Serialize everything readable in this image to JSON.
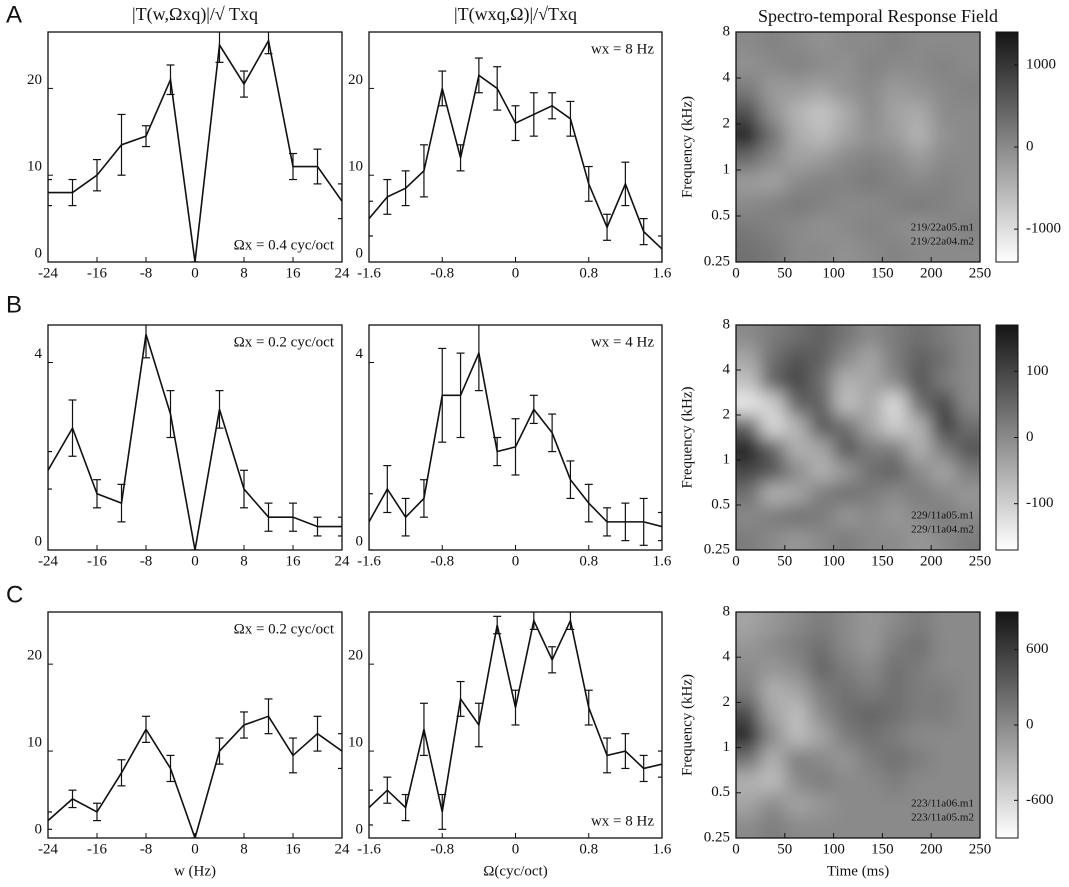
{
  "panel_labels": [
    "A",
    "B",
    "C"
  ],
  "chart_data": [
    {
      "type": "line",
      "title": "|T(w,Ωxq)|/√ Txq",
      "annotation": "Ωx = 0.4 cyc/oct",
      "annotation_corner": "lower right",
      "color": "#111111",
      "x": [
        -24,
        -20,
        -16,
        -12,
        -8,
        -4,
        0,
        4,
        8,
        12,
        16,
        20,
        24
      ],
      "values": [
        8,
        8,
        10,
        13.5,
        14.5,
        21,
        0,
        25,
        20.5,
        25.5,
        11,
        11,
        7
      ],
      "errors": [
        1.5,
        1.5,
        1.8,
        3.5,
        1.2,
        1.7,
        0,
        2,
        1.5,
        1.5,
        1.5,
        2,
        2
      ],
      "xlim": [
        -24,
        24
      ],
      "xticks": [
        -24,
        -16,
        -8,
        0,
        8,
        16,
        24
      ],
      "ylim": [
        0,
        26.5
      ],
      "yticks": [
        0,
        10,
        20
      ]
    },
    {
      "type": "line",
      "title": "|T(wxq,Ω)|/√Txq",
      "annotation": "wx = 8 Hz",
      "annotation_corner": "upper right",
      "color": "#111111",
      "x": [
        -1.6,
        -1.4,
        -1.2,
        -1.0,
        -0.8,
        -0.6,
        -0.4,
        -0.2,
        0,
        0.2,
        0.4,
        0.6,
        0.8,
        1.0,
        1.2,
        1.4,
        1.6
      ],
      "values": [
        5,
        7.5,
        8.5,
        10.5,
        20,
        12,
        21.5,
        20,
        16,
        17,
        18,
        16.5,
        9,
        4,
        9,
        3.5,
        1.5
      ],
      "errors": [
        2,
        2,
        2,
        3,
        2,
        1.5,
        2,
        2.5,
        2,
        2.5,
        1.5,
        2,
        2,
        1.5,
        2.5,
        1.5,
        1.5
      ],
      "xlim": [
        -1.6,
        1.6
      ],
      "xticks": [
        -1.6,
        -0.8,
        0,
        0.8,
        1.6
      ],
      "ylim": [
        0,
        26.5
      ],
      "yticks": [
        0,
        10,
        20
      ]
    },
    {
      "type": "heatmap",
      "title": "Spectro-temporal Response Field",
      "ylabel": "Frequency (kHz)",
      "annotation": [
        "219/22a05.m1",
        "219/22a04.m2"
      ],
      "xlim": [
        0,
        250
      ],
      "xticks": [
        0,
        50,
        100,
        150,
        200,
        250
      ],
      "ylim": [
        0.25,
        8
      ],
      "yticks": [
        0.25,
        0.5,
        1,
        2,
        4,
        8
      ],
      "ylog": true,
      "zlim": [
        -1400,
        1400
      ],
      "zticks": [
        1000,
        0,
        -1000
      ],
      "colormap": [
        "#ffffff",
        "#151515"
      ],
      "z": [
        [
          0,
          100,
          0,
          -100,
          0,
          0,
          100,
          0,
          0,
          0
        ],
        [
          -100,
          0,
          100,
          0,
          -100,
          100,
          0,
          0,
          100,
          0
        ],
        [
          200,
          -200,
          -200,
          -300,
          -100,
          0,
          -200,
          -100,
          0,
          100
        ],
        [
          700,
          -100,
          -500,
          -700,
          -400,
          0,
          -300,
          -400,
          0,
          0
        ],
        [
          1300,
          300,
          -400,
          -600,
          -300,
          -100,
          -200,
          -500,
          -100,
          0
        ],
        [
          400,
          0,
          -300,
          -200,
          0,
          100,
          0,
          -200,
          0,
          0
        ],
        [
          -200,
          -300,
          0,
          100,
          100,
          200,
          100,
          0,
          100,
          0
        ],
        [
          0,
          100,
          200,
          100,
          0,
          0,
          100,
          200,
          100,
          0
        ],
        [
          200,
          100,
          0,
          -100,
          0,
          100,
          0,
          -100,
          0,
          100
        ],
        [
          300,
          200,
          0,
          0,
          -100,
          0,
          100,
          0,
          0,
          0
        ]
      ]
    },
    {
      "type": "line",
      "annotation": "Ωx = 0.2 cyc/oct",
      "annotation_corner": "upper right",
      "color": "#111111",
      "x": [
        -24,
        -20,
        -16,
        -12,
        -8,
        -4,
        0,
        4,
        8,
        12,
        16,
        20,
        24
      ],
      "values": [
        1.7,
        2.6,
        1.2,
        1.0,
        4.6,
        2.9,
        0,
        3.0,
        1.3,
        0.7,
        0.7,
        0.5,
        0.5
      ],
      "errors": [
        0.4,
        0.6,
        0.3,
        0.4,
        0.5,
        0.5,
        0,
        0.4,
        0.4,
        0.3,
        0.3,
        0.2,
        0.2
      ],
      "xlim": [
        -24,
        24
      ],
      "xticks": [
        -24,
        -16,
        -8,
        0,
        8,
        16,
        24
      ],
      "ylim": [
        0,
        4.8
      ],
      "yticks": [
        0,
        4
      ]
    },
    {
      "type": "line",
      "annotation": "wx = 4 Hz",
      "annotation_corner": "upper right",
      "color": "#111111",
      "x": [
        -1.6,
        -1.4,
        -1.2,
        -1.0,
        -0.8,
        -0.6,
        -0.4,
        -0.2,
        0,
        0.2,
        0.4,
        0.6,
        0.8,
        1.0,
        1.2,
        1.4,
        1.6
      ],
      "values": [
        0.6,
        1.3,
        0.7,
        1.1,
        3.3,
        3.3,
        4.2,
        2.1,
        2.2,
        3.0,
        2.5,
        1.5,
        1.0,
        0.6,
        0.6,
        0.6,
        0.5
      ],
      "errors": [
        0.6,
        0.5,
        0.4,
        0.4,
        1.0,
        0.9,
        0.8,
        0.3,
        0.6,
        0.3,
        0.4,
        0.4,
        0.4,
        0.3,
        0.4,
        0.5,
        0.3
      ],
      "xlim": [
        -1.6,
        1.6
      ],
      "xticks": [
        -1.6,
        -0.8,
        0,
        0.8,
        1.6
      ],
      "ylim": [
        0,
        4.8
      ],
      "yticks": [
        0,
        4
      ]
    },
    {
      "type": "heatmap",
      "ylabel": "Frequency (kHz)",
      "annotation": [
        "229/11a05.m1",
        "229/11a04.m2"
      ],
      "xlim": [
        0,
        250
      ],
      "xticks": [
        0,
        50,
        100,
        150,
        200,
        250
      ],
      "ylim": [
        0.25,
        8
      ],
      "yticks": [
        0.25,
        0.5,
        1,
        2,
        4,
        8
      ],
      "ylog": true,
      "zlim": [
        -170,
        170
      ],
      "zticks": [
        100,
        0,
        -100
      ],
      "colormap": [
        "#ffffff",
        "#151515"
      ],
      "z": [
        [
          0,
          20,
          40,
          60,
          30,
          0,
          20,
          40,
          20,
          0
        ],
        [
          -40,
          40,
          80,
          60,
          0,
          -40,
          20,
          60,
          40,
          0
        ],
        [
          -80,
          60,
          100,
          40,
          -60,
          -40,
          0,
          80,
          20,
          0
        ],
        [
          -140,
          -100,
          60,
          60,
          -80,
          -40,
          -120,
          40,
          100,
          0
        ],
        [
          60,
          -120,
          -60,
          80,
          40,
          -40,
          -100,
          -60,
          120,
          40
        ],
        [
          160,
          60,
          -60,
          -40,
          80,
          20,
          20,
          -60,
          20,
          80
        ],
        [
          100,
          80,
          0,
          -60,
          -20,
          40,
          60,
          0,
          -40,
          20
        ],
        [
          40,
          -60,
          -40,
          20,
          40,
          20,
          0,
          20,
          0,
          -20
        ],
        [
          0,
          20,
          40,
          20,
          -20,
          0,
          -20,
          0,
          20,
          0
        ],
        [
          20,
          0,
          -20,
          0,
          20,
          0,
          0,
          -20,
          0,
          20
        ]
      ]
    },
    {
      "type": "line",
      "xlabel": "w (Hz)",
      "annotation": "Ωx = 0.2 cyc/oct",
      "annotation_corner": "upper right",
      "color": "#111111",
      "x": [
        -24,
        -20,
        -16,
        -12,
        -8,
        -4,
        0,
        4,
        8,
        12,
        16,
        20,
        24
      ],
      "values": [
        2,
        4.5,
        3,
        7.5,
        12.5,
        8,
        0,
        10,
        13,
        14,
        9.5,
        12,
        10
      ],
      "errors": [
        1,
        1,
        1,
        1.5,
        1.5,
        1.5,
        0,
        1.5,
        1.5,
        2,
        2,
        2,
        2
      ],
      "xlim": [
        -24,
        24
      ],
      "xticks": [
        -24,
        -16,
        -8,
        0,
        8,
        16,
        24
      ],
      "ylim": [
        0,
        26
      ],
      "yticks": [
        0,
        10,
        20
      ]
    },
    {
      "type": "line",
      "xlabel": "Ω(cyc/oct)",
      "annotation": "wx = 8 Hz",
      "annotation_corner": "lower right",
      "color": "#111111",
      "x": [
        -1.6,
        -1.4,
        -1.2,
        -1.0,
        -0.8,
        -0.6,
        -0.4,
        -0.2,
        0,
        0.2,
        0.4,
        0.6,
        0.8,
        1.0,
        1.2,
        1.4,
        1.6
      ],
      "values": [
        3.5,
        5.5,
        3.5,
        12.5,
        3,
        16,
        13,
        24.5,
        15,
        25,
        20.5,
        25,
        15,
        9.5,
        10,
        8,
        8.5
      ],
      "errors": [
        2,
        1.5,
        1.5,
        3,
        2,
        2,
        2.5,
        1,
        2,
        1,
        1.5,
        1,
        2,
        2,
        2,
        1.5,
        1.5
      ],
      "xlim": [
        -1.6,
        1.6
      ],
      "xticks": [
        -1.6,
        -0.8,
        0,
        0.8,
        1.6
      ],
      "ylim": [
        0,
        26
      ],
      "yticks": [
        0,
        10,
        20
      ]
    },
    {
      "type": "heatmap",
      "xlabel": "Time (ms)",
      "ylabel": "Frequency (kHz)",
      "annotation": [
        "223/11a06.m1",
        "223/11a05.m2"
      ],
      "xlim": [
        0,
        250
      ],
      "xticks": [
        0,
        50,
        100,
        150,
        200,
        250
      ],
      "ylim": [
        0.25,
        8
      ],
      "yticks": [
        0.25,
        0.5,
        1,
        2,
        4,
        8
      ],
      "ylog": true,
      "zlim": [
        -900,
        900
      ],
      "zticks": [
        600,
        0,
        -600
      ],
      "colormap": [
        "#ffffff",
        "#151515"
      ],
      "z": [
        [
          -200,
          -100,
          0,
          100,
          0,
          -100,
          0,
          100,
          0,
          0
        ],
        [
          -100,
          0,
          100,
          200,
          0,
          -100,
          100,
          200,
          0,
          0
        ],
        [
          0,
          -100,
          0,
          300,
          100,
          0,
          200,
          100,
          0,
          0
        ],
        [
          100,
          -300,
          -200,
          100,
          200,
          100,
          200,
          100,
          100,
          0
        ],
        [
          500,
          -200,
          -400,
          0,
          200,
          300,
          200,
          100,
          100,
          0
        ],
        [
          800,
          0,
          -400,
          -200,
          100,
          200,
          100,
          0,
          0,
          0
        ],
        [
          200,
          -300,
          100,
          0,
          -100,
          100,
          200,
          100,
          0,
          0
        ],
        [
          -300,
          -400,
          0,
          100,
          0,
          0,
          100,
          0,
          0,
          0
        ],
        [
          -200,
          0,
          -200,
          -100,
          0,
          0,
          0,
          0,
          0,
          0
        ],
        [
          0,
          100,
          0,
          0,
          0,
          0,
          0,
          0,
          0,
          0
        ]
      ]
    }
  ]
}
